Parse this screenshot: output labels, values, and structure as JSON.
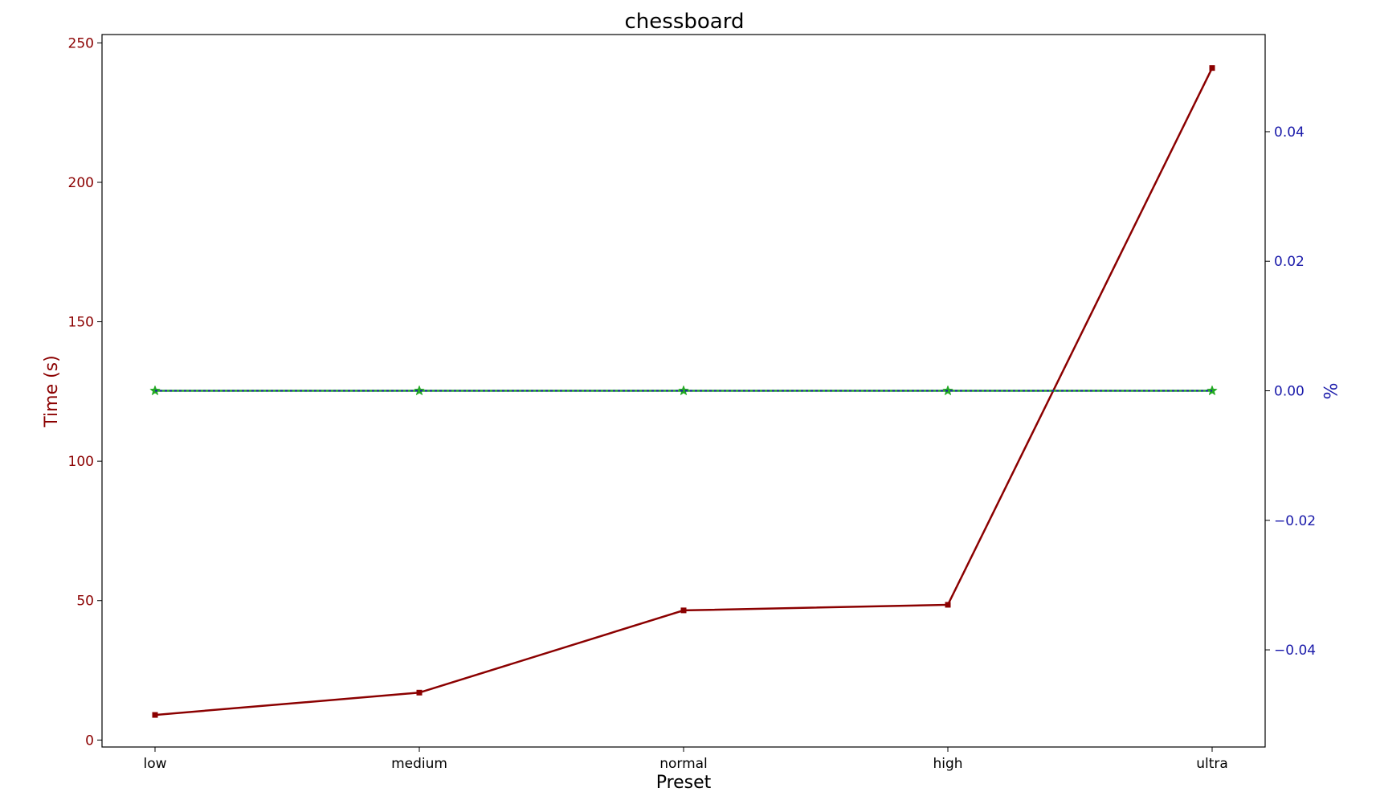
{
  "chart_data": {
    "type": "line",
    "title": "chessboard",
    "xlabel": "Preset",
    "ylabel": "Time (s)",
    "ylabel_right": "%",
    "categories": [
      "low",
      "medium",
      "normal",
      "high",
      "ultra"
    ],
    "left_axis": {
      "ylim": [
        -2.5,
        253
      ],
      "ticks": [
        0,
        50,
        100,
        150,
        200,
        250
      ],
      "tick_labels": [
        "0",
        "50",
        "100",
        "150",
        "200",
        "250"
      ]
    },
    "right_axis": {
      "ylim": [
        -0.055,
        0.055
      ],
      "ticks": [
        -0.04,
        -0.02,
        0.0,
        0.02,
        0.04
      ],
      "tick_labels": [
        "−0.04",
        "−0.02",
        "0.00",
        "0.02",
        "0.04"
      ]
    },
    "series": [
      {
        "values": [
          9,
          17,
          46.5,
          48.5,
          241
        ],
        "axis": "left",
        "color": "#8b0000",
        "marker": "square",
        "style": "solid"
      },
      {
        "values": [
          0,
          0,
          0,
          0,
          0
        ],
        "axis": "right",
        "color": "#22aa22",
        "marker": "star",
        "style": "solid"
      },
      {
        "values": [
          0,
          0,
          0,
          0,
          0
        ],
        "axis": "right",
        "color": "#1a1aaa",
        "marker": "none",
        "style": "dotted"
      }
    ],
    "grid": false,
    "legend": "none"
  }
}
